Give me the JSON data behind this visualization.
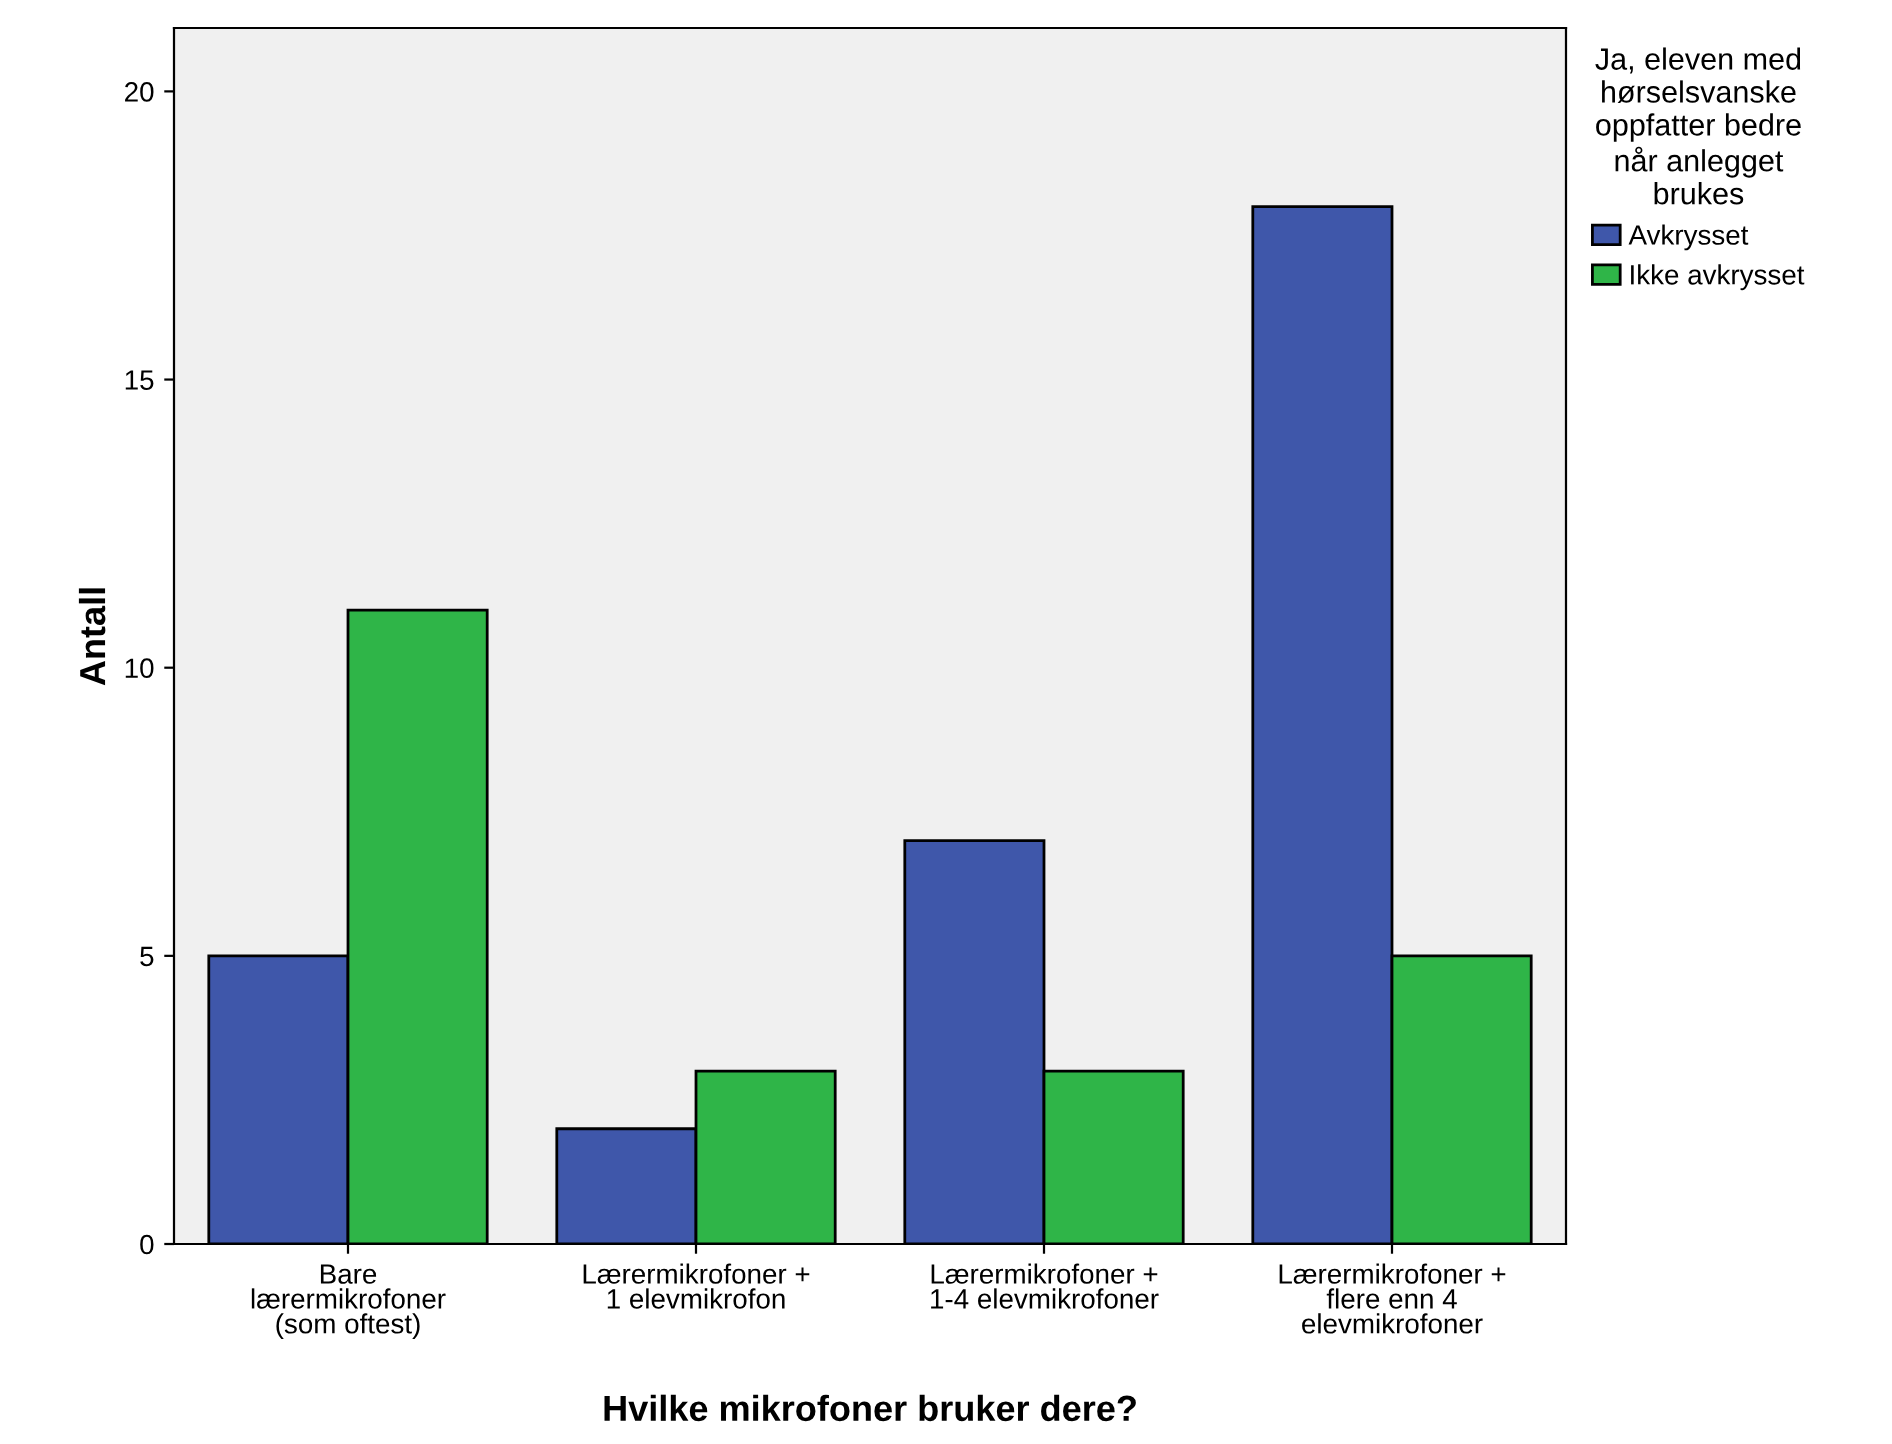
{
  "chart_data": {
    "type": "bar",
    "xlabel": "Hvilke mikrofoner bruker dere?",
    "ylabel": "Antall",
    "legend_title": "Ja, eleven med\nhørselsvanske\noppfatter bedre\nnår anlegget\nbrukes",
    "categories": [
      "Bare\nlærermikrofoner\n(som oftest)",
      "Lærermikrofoner +\n1 elevmikrofon",
      "Lærermikrofoner +\n1-4 elevmikrofoner",
      "Lærermikrofoner +\nflere enn 4\nelevmikrofoner"
    ],
    "series": [
      {
        "name": "Avkrysset",
        "color": "#3f57aa",
        "values": [
          5,
          2,
          7,
          18
        ]
      },
      {
        "name": "Ikke avkrysset",
        "color": "#2fb548",
        "values": [
          11,
          3,
          3,
          5
        ]
      }
    ],
    "ylim": [
      0,
      21.1
    ],
    "yticks": [
      0,
      5,
      10,
      15,
      20
    ],
    "grid": false,
    "legend": "right"
  }
}
